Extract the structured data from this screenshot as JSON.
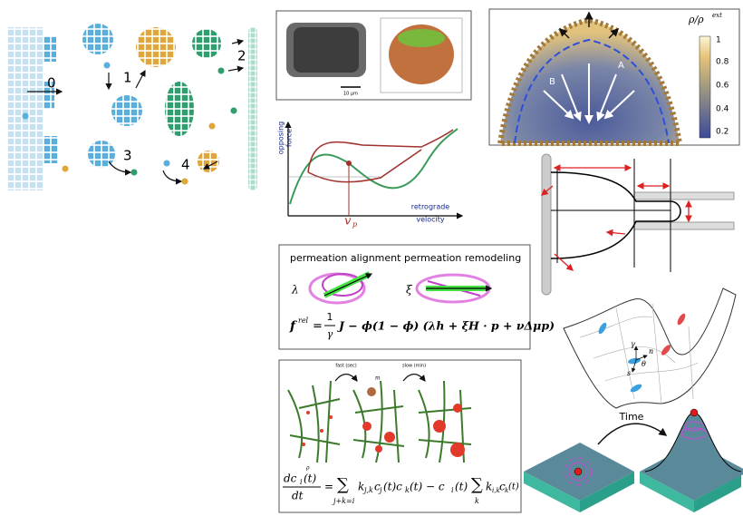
{
  "panel_aggregation": {
    "labels": [
      "0",
      "1",
      "2",
      "3",
      "4"
    ]
  },
  "panel_imaging": {
    "scale_bar": "10 μm"
  },
  "panel_density": {
    "colorbar_title": "ρ/ρ",
    "colorbar_title_sup": "ext",
    "colorbar_ticks": [
      "1",
      "0.8",
      "0.6",
      "0.4",
      "0.2"
    ],
    "points": [
      "A",
      "B"
    ]
  },
  "panel_force": {
    "y_label": [
      "opposing",
      "force"
    ],
    "x_label": [
      "retrograde",
      "velocity"
    ],
    "marker": "v",
    "marker_sub": "p"
  },
  "panel_permeation": {
    "left_title": "permeation alignment",
    "right_title": "permeation remodeling",
    "left_symbol": "λ",
    "right_symbol": "ξ",
    "formula": {
      "lhs": "f",
      "lhs_sup": "rel",
      "eq": "=",
      "num": "1",
      "den": "γ",
      "rhs": "J − ϕ(1 − ϕ) (λh + ξH · p + νΔμp)"
    }
  },
  "panel_coagulation": {
    "fast": "fast (sec)",
    "slow": "slow (min)",
    "m": "m",
    "p": "ρ",
    "formula": {
      "num": "dc",
      "num_sub": "i",
      "num_t": "(t)",
      "den": "dt",
      "eq": "=",
      "sum1_sub": "j+k=i",
      "term1": "k",
      "term1_sub": "j,k",
      "term1_rest": "c",
      "term1_rest_sub": "j",
      "term1_mid": "(t)c",
      "term1_mid_sub": "k",
      "term1_end": "(t) − c",
      "term1_end_sub": "i",
      "term1_close": "(t)",
      "sum2_sub": "k",
      "term2": "k",
      "term2_sub": "i,k",
      "term2_c": "c",
      "term2_c_sub": "k",
      "term2_close": "(t)"
    }
  },
  "panel_surface": {
    "labels": [
      "γ",
      "n",
      "θ",
      "s"
    ]
  },
  "panel_time": {
    "label": "Time"
  }
}
